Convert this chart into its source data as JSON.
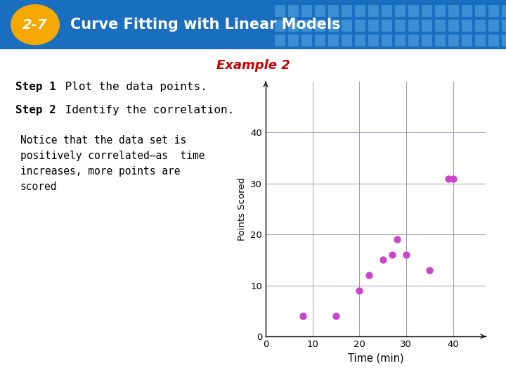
{
  "title_badge": "2-7",
  "title_text": "Curve Fitting with Linear Models",
  "subtitle": "Example 2",
  "step1_bold": "Step 1",
  "step1_rest": " Plot the data points.",
  "step2_bold": "Step 2",
  "step2_rest": " Identify the correlation.",
  "notice_text": "Notice that the data set is\npositively correlated–as  time\nincreases, more points are\nscored",
  "x_data": [
    8,
    15,
    20,
    22,
    25,
    27,
    28,
    30,
    35,
    39,
    40
  ],
  "y_data": [
    4,
    4,
    9,
    12,
    15,
    16,
    19,
    16,
    13,
    31,
    31
  ],
  "xlabel": "Time (min)",
  "ylabel": "Points Scored",
  "xlim": [
    0,
    47
  ],
  "ylim": [
    0,
    50
  ],
  "xticks": [
    0,
    10,
    20,
    30,
    40
  ],
  "yticks": [
    0,
    10,
    20,
    30,
    40
  ],
  "dot_color": "#CC44CC",
  "dot_size": 55,
  "header_bg": "#1A6EC0",
  "header_text_color": "#FFFFFF",
  "badge_bg": "#F5A800",
  "subtitle_color": "#CC0000",
  "grid_color": "#9999BB",
  "bg_color": "#FFFFFF",
  "footer_bg": "#1A6EC0",
  "tile_color_light": "#3D8FD4",
  "tile_color_dark": "#1A6EC0"
}
